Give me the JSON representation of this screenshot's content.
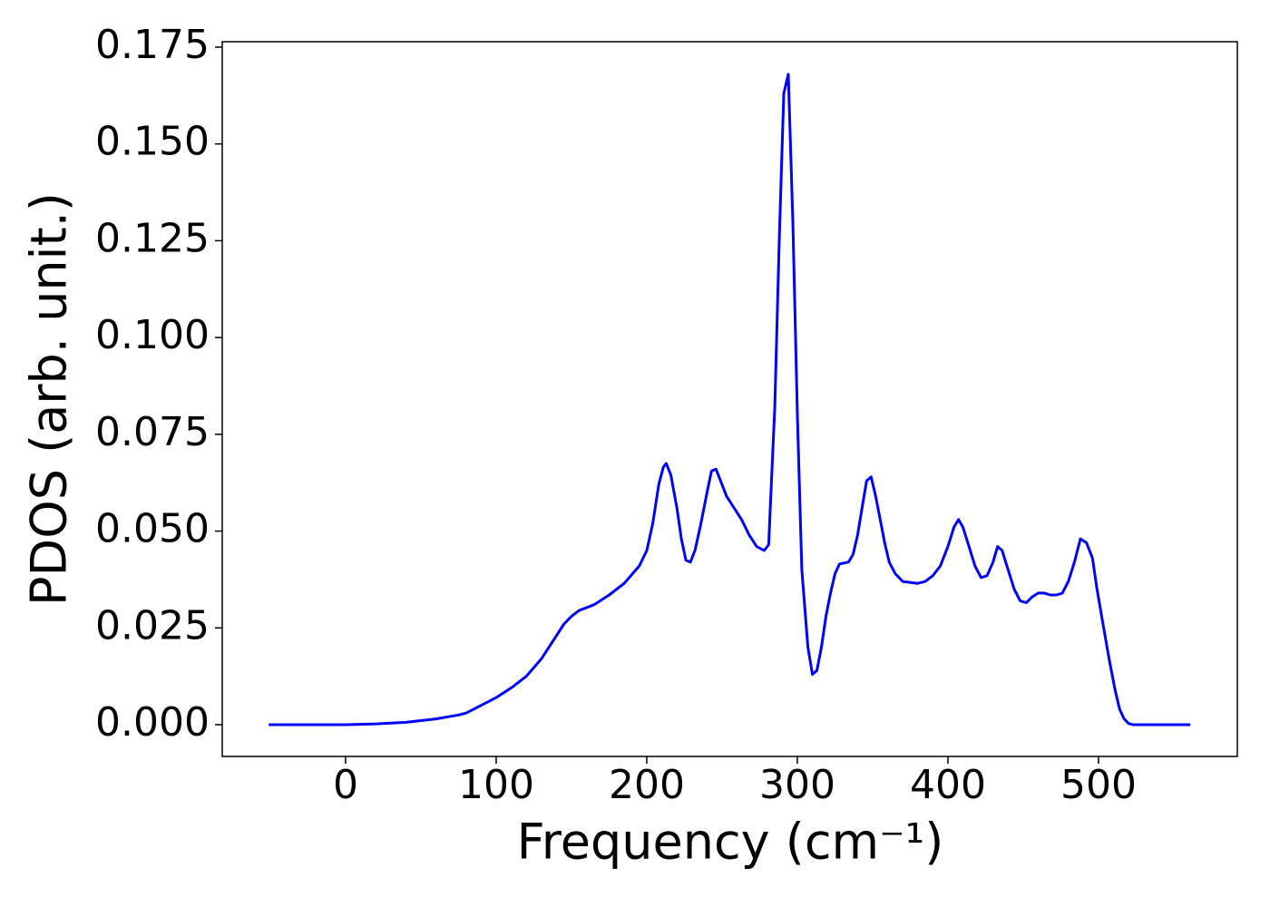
{
  "chart_data": {
    "type": "line",
    "xlabel": "Frequency (cm⁻¹)",
    "ylabel": "PDOS (arb. unit.)",
    "xlim": [
      -81.9,
      592.2
    ],
    "ylim": [
      -0.0082,
      0.1764
    ],
    "xticks": [
      0,
      100,
      200,
      300,
      400,
      500
    ],
    "yticks": [
      {
        "value": 0,
        "label": "0.000"
      },
      {
        "value": 0.025,
        "label": "0.025"
      },
      {
        "value": 0.05,
        "label": "0.050"
      },
      {
        "value": 0.075,
        "label": "0.075"
      },
      {
        "value": 0.1,
        "label": "0.100"
      },
      {
        "value": 0.125,
        "label": "0.125"
      },
      {
        "value": 0.15,
        "label": "0.150"
      },
      {
        "value": 0.175,
        "label": "0.175"
      }
    ],
    "grid": false,
    "series": [
      {
        "color": "#0000ff",
        "x": [
          -51,
          0,
          20,
          40,
          60,
          75,
          80,
          90,
          100,
          110,
          120,
          130,
          140,
          145,
          150,
          155,
          165,
          175,
          185,
          195,
          200,
          204,
          208,
          211,
          213,
          216,
          220,
          223,
          226,
          229,
          232,
          236,
          240,
          243,
          246,
          249,
          253,
          258,
          263,
          268,
          273,
          278,
          281,
          282,
          285,
          288,
          291,
          294,
          297,
          300,
          303,
          307,
          310,
          313,
          316,
          319,
          322,
          325,
          328,
          334,
          337,
          340,
          343,
          346,
          349,
          352,
          355,
          358,
          361,
          365,
          370,
          380,
          385,
          390,
          395,
          400,
          404,
          407,
          410,
          414,
          418,
          422,
          426,
          430,
          433,
          436,
          440,
          444,
          448,
          452,
          456,
          460,
          464,
          468,
          472,
          476,
          480,
          484,
          488,
          492,
          496,
          499,
          503,
          507,
          511,
          514,
          517,
          520,
          523,
          527,
          535,
          561
        ],
        "values": [
          0,
          0,
          0.0002,
          0.0006,
          0.0015,
          0.0025,
          0.003,
          0.005,
          0.007,
          0.0095,
          0.0125,
          0.017,
          0.023,
          0.026,
          0.028,
          0.0295,
          0.031,
          0.0335,
          0.0365,
          0.041,
          0.045,
          0.052,
          0.062,
          0.0665,
          0.0675,
          0.0645,
          0.056,
          0.048,
          0.0425,
          0.042,
          0.045,
          0.052,
          0.06,
          0.0655,
          0.066,
          0.063,
          0.059,
          0.056,
          0.053,
          0.049,
          0.046,
          0.045,
          0.0465,
          0.056,
          0.082,
          0.125,
          0.163,
          0.168,
          0.13,
          0.08,
          0.04,
          0.02,
          0.013,
          0.014,
          0.02,
          0.028,
          0.034,
          0.039,
          0.0415,
          0.042,
          0.044,
          0.049,
          0.056,
          0.063,
          0.064,
          0.059,
          0.053,
          0.047,
          0.042,
          0.039,
          0.037,
          0.0365,
          0.037,
          0.0385,
          0.041,
          0.046,
          0.051,
          0.053,
          0.051,
          0.046,
          0.041,
          0.038,
          0.0385,
          0.042,
          0.046,
          0.045,
          0.04,
          0.035,
          0.032,
          0.0315,
          0.033,
          0.034,
          0.034,
          0.0335,
          0.0335,
          0.034,
          0.037,
          0.042,
          0.048,
          0.047,
          0.043,
          0.035,
          0.026,
          0.017,
          0.009,
          0.004,
          0.0015,
          0.0003,
          0,
          0,
          0,
          0
        ]
      }
    ]
  }
}
